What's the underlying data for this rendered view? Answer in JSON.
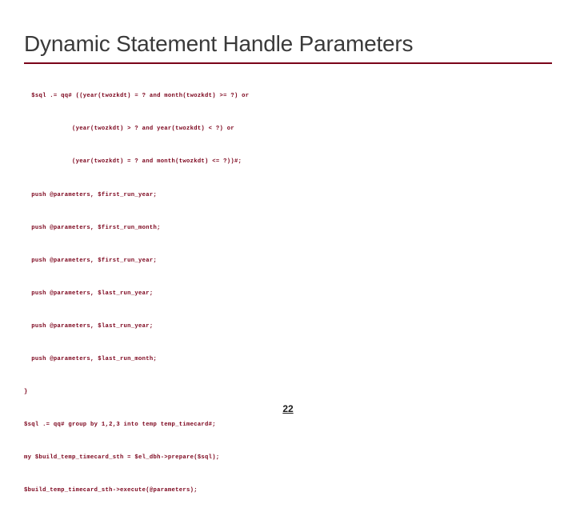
{
  "slide": {
    "title": "Dynamic Statement Handle Parameters",
    "page_number": "22",
    "title_color": "#3a3a3a",
    "rule_color": "#7a0019",
    "code_color": "#7a0019",
    "background_color": "#ffffff",
    "code_fontsize_pt": 7.2,
    "title_fontsize_pt": 28,
    "code": {
      "lines": [
        "  $sql .= qq# ((year(twozkdt) = ? and month(twozkdt) >= ?) or",
        "             (year(twozkdt) > ? and year(twozkdt) < ?) or",
        "             (year(twozkdt) = ? and month(twozkdt) <= ?))#;",
        "  push @parameters, $first_run_year;",
        "  push @parameters, $first_run_month;",
        "  push @parameters, $first_run_year;",
        "  push @parameters, $last_run_year;",
        "  push @parameters, $last_run_year;",
        "  push @parameters, $last_run_month;",
        "}",
        "$sql .= qq# group by 1,2,3 into temp temp_timecard#;",
        "my $build_temp_timecard_sth = $el_dbh->prepare($sql);",
        "$build_temp_timecard_sth->execute(@parameters);"
      ]
    }
  }
}
